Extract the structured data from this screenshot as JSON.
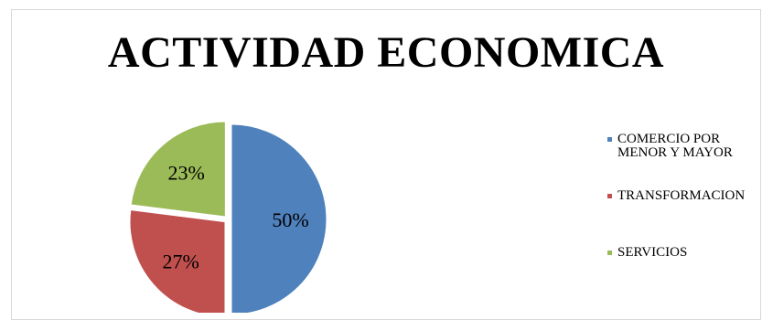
{
  "chart_data": {
    "type": "pie",
    "title": "ACTIVIDAD ECONOMICA",
    "slices": [
      {
        "label": "COMERCIO POR MENOR Y MAYOR",
        "value": 50,
        "display": "50%",
        "color": "#4F81BD"
      },
      {
        "label": "TRANSFORMACION",
        "value": 27,
        "display": "27%",
        "color": "#C0504D"
      },
      {
        "label": "SERVICIOS",
        "value": 23,
        "display": "23%",
        "color": "#9BBB59"
      }
    ],
    "legend_position": "right"
  },
  "legend": {
    "items": [
      {
        "text": "COMERCIO POR MENOR Y MAYOR",
        "color": "#4F81BD"
      },
      {
        "text": "TRANSFORMACION",
        "color": "#C0504D"
      },
      {
        "text": "SERVICIOS",
        "color": "#9BBB59"
      }
    ]
  }
}
